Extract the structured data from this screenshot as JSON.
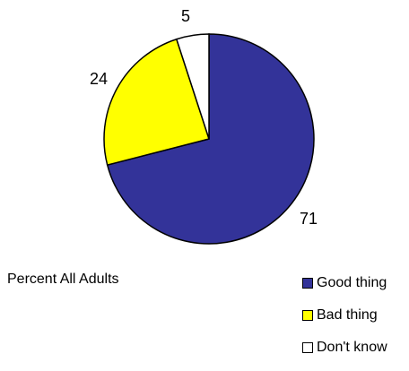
{
  "chart_data": {
    "type": "pie",
    "categories": [
      "Good thing",
      "Bad thing",
      "Don't know"
    ],
    "values": [
      71,
      24,
      5
    ],
    "colors": [
      "#333399",
      "#FFFF00",
      "#FFFFFF"
    ],
    "data_labels": [
      "71",
      "24",
      "5"
    ],
    "legend_position": "bottom-right",
    "caption": "Percent All Adults"
  }
}
